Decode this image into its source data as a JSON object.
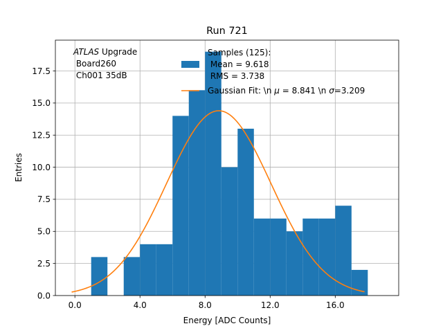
{
  "chart_data": {
    "type": "bar",
    "title": "Run 721",
    "xlabel": "Energy [ADC Counts]",
    "ylabel": "Entries",
    "xlim": [
      -1.2,
      19.9
    ],
    "ylim": [
      0,
      19.9
    ],
    "grid": true,
    "x_ticks": [
      0,
      4,
      8,
      12,
      16
    ],
    "x_tick_labels": [
      "0.0",
      "4.0",
      "8.0",
      "12.0",
      "16.0"
    ],
    "y_ticks": [
      0,
      2.5,
      5,
      7.5,
      10,
      12.5,
      15,
      17.5
    ],
    "y_tick_labels": [
      "0.0",
      "2.5",
      "5.0",
      "7.5",
      "10.0",
      "12.5",
      "15.0",
      "17.5"
    ],
    "histogram": {
      "color": "#1f77b4",
      "bin_edges": [
        1,
        2,
        3,
        4,
        5,
        6,
        7,
        8,
        9,
        10,
        11,
        12,
        13,
        14,
        15,
        16,
        17,
        18
      ],
      "counts": [
        3,
        0,
        3,
        4,
        4,
        14,
        16,
        19,
        10,
        13,
        6,
        6,
        5,
        6,
        6,
        7,
        2
      ]
    },
    "fit": {
      "color": "#ff7f0e",
      "type": "gaussian",
      "mu": 8.841,
      "sigma": 3.209,
      "amplitude": 14.4,
      "x_range": [
        -0.2,
        17.8
      ]
    },
    "annotation": {
      "atlas": "ATLAS",
      "upgrade": " Upgrade",
      "board": " Board260",
      "channel": " Ch001 35dB"
    },
    "legend": {
      "placement": "top-center",
      "hist_lines": [
        "Samples (125):",
        " Mean = 9.618",
        " RMS = 3.738"
      ],
      "fit_line": "Gaussian Fit: \\n $\\mu$ = 8.841 \\n $\\sigma$=3.209"
    }
  }
}
